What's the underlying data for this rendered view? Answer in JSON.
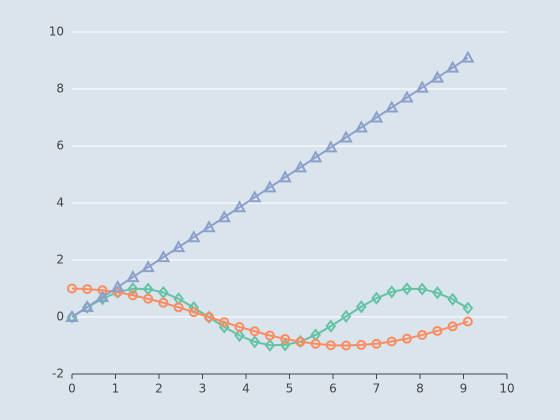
{
  "chart_data": {
    "type": "line",
    "x": [
      0,
      0.35,
      0.7,
      1.05,
      1.4,
      1.75,
      2.1,
      2.45,
      2.8,
      3.15,
      3.5,
      3.85,
      4.2,
      4.55,
      4.9,
      5.25,
      5.6,
      5.95,
      6.3,
      6.65,
      7.0,
      7.35,
      7.7,
      8.05,
      8.4,
      8.75,
      9.1
    ],
    "series": [
      {
        "color": "#66c2a5",
        "marker": "diamond",
        "values": [
          0,
          0.34,
          0.64,
          0.87,
          0.99,
          0.98,
          0.86,
          0.64,
          0.33,
          -0.01,
          -0.35,
          -0.65,
          -0.87,
          -0.99,
          -0.98,
          -0.86,
          -0.63,
          -0.32,
          0.02,
          0.36,
          0.66,
          0.88,
          0.99,
          0.98,
          0.85,
          0.62,
          0.31
        ]
      },
      {
        "color": "#fc8d62",
        "marker": "circle",
        "values": [
          1,
          0.98,
          0.94,
          0.87,
          0.76,
          0.64,
          0.5,
          0.34,
          0.17,
          0,
          -0.18,
          -0.35,
          -0.5,
          -0.65,
          -0.77,
          -0.87,
          -0.94,
          -0.99,
          -1,
          -0.98,
          -0.94,
          -0.86,
          -0.76,
          -0.63,
          -0.49,
          -0.33,
          -0.16
        ]
      },
      {
        "color": "#8da0cb",
        "marker": "triangle",
        "values": [
          0,
          0.35,
          0.7,
          1.05,
          1.4,
          1.75,
          2.1,
          2.45,
          2.8,
          3.15,
          3.5,
          3.85,
          4.2,
          4.55,
          4.9,
          5.25,
          5.6,
          5.95,
          6.3,
          6.65,
          7.0,
          7.35,
          7.7,
          8.05,
          8.4,
          8.75,
          9.1
        ]
      }
    ],
    "xlim": [
      0,
      10
    ],
    "xticks": [
      0,
      1,
      2,
      3,
      4,
      5,
      6,
      7,
      8,
      9,
      10
    ],
    "ylim": [
      -2,
      10
    ],
    "yticks": [
      -2,
      0,
      2,
      4,
      6,
      8,
      10
    ],
    "grid": true
  }
}
